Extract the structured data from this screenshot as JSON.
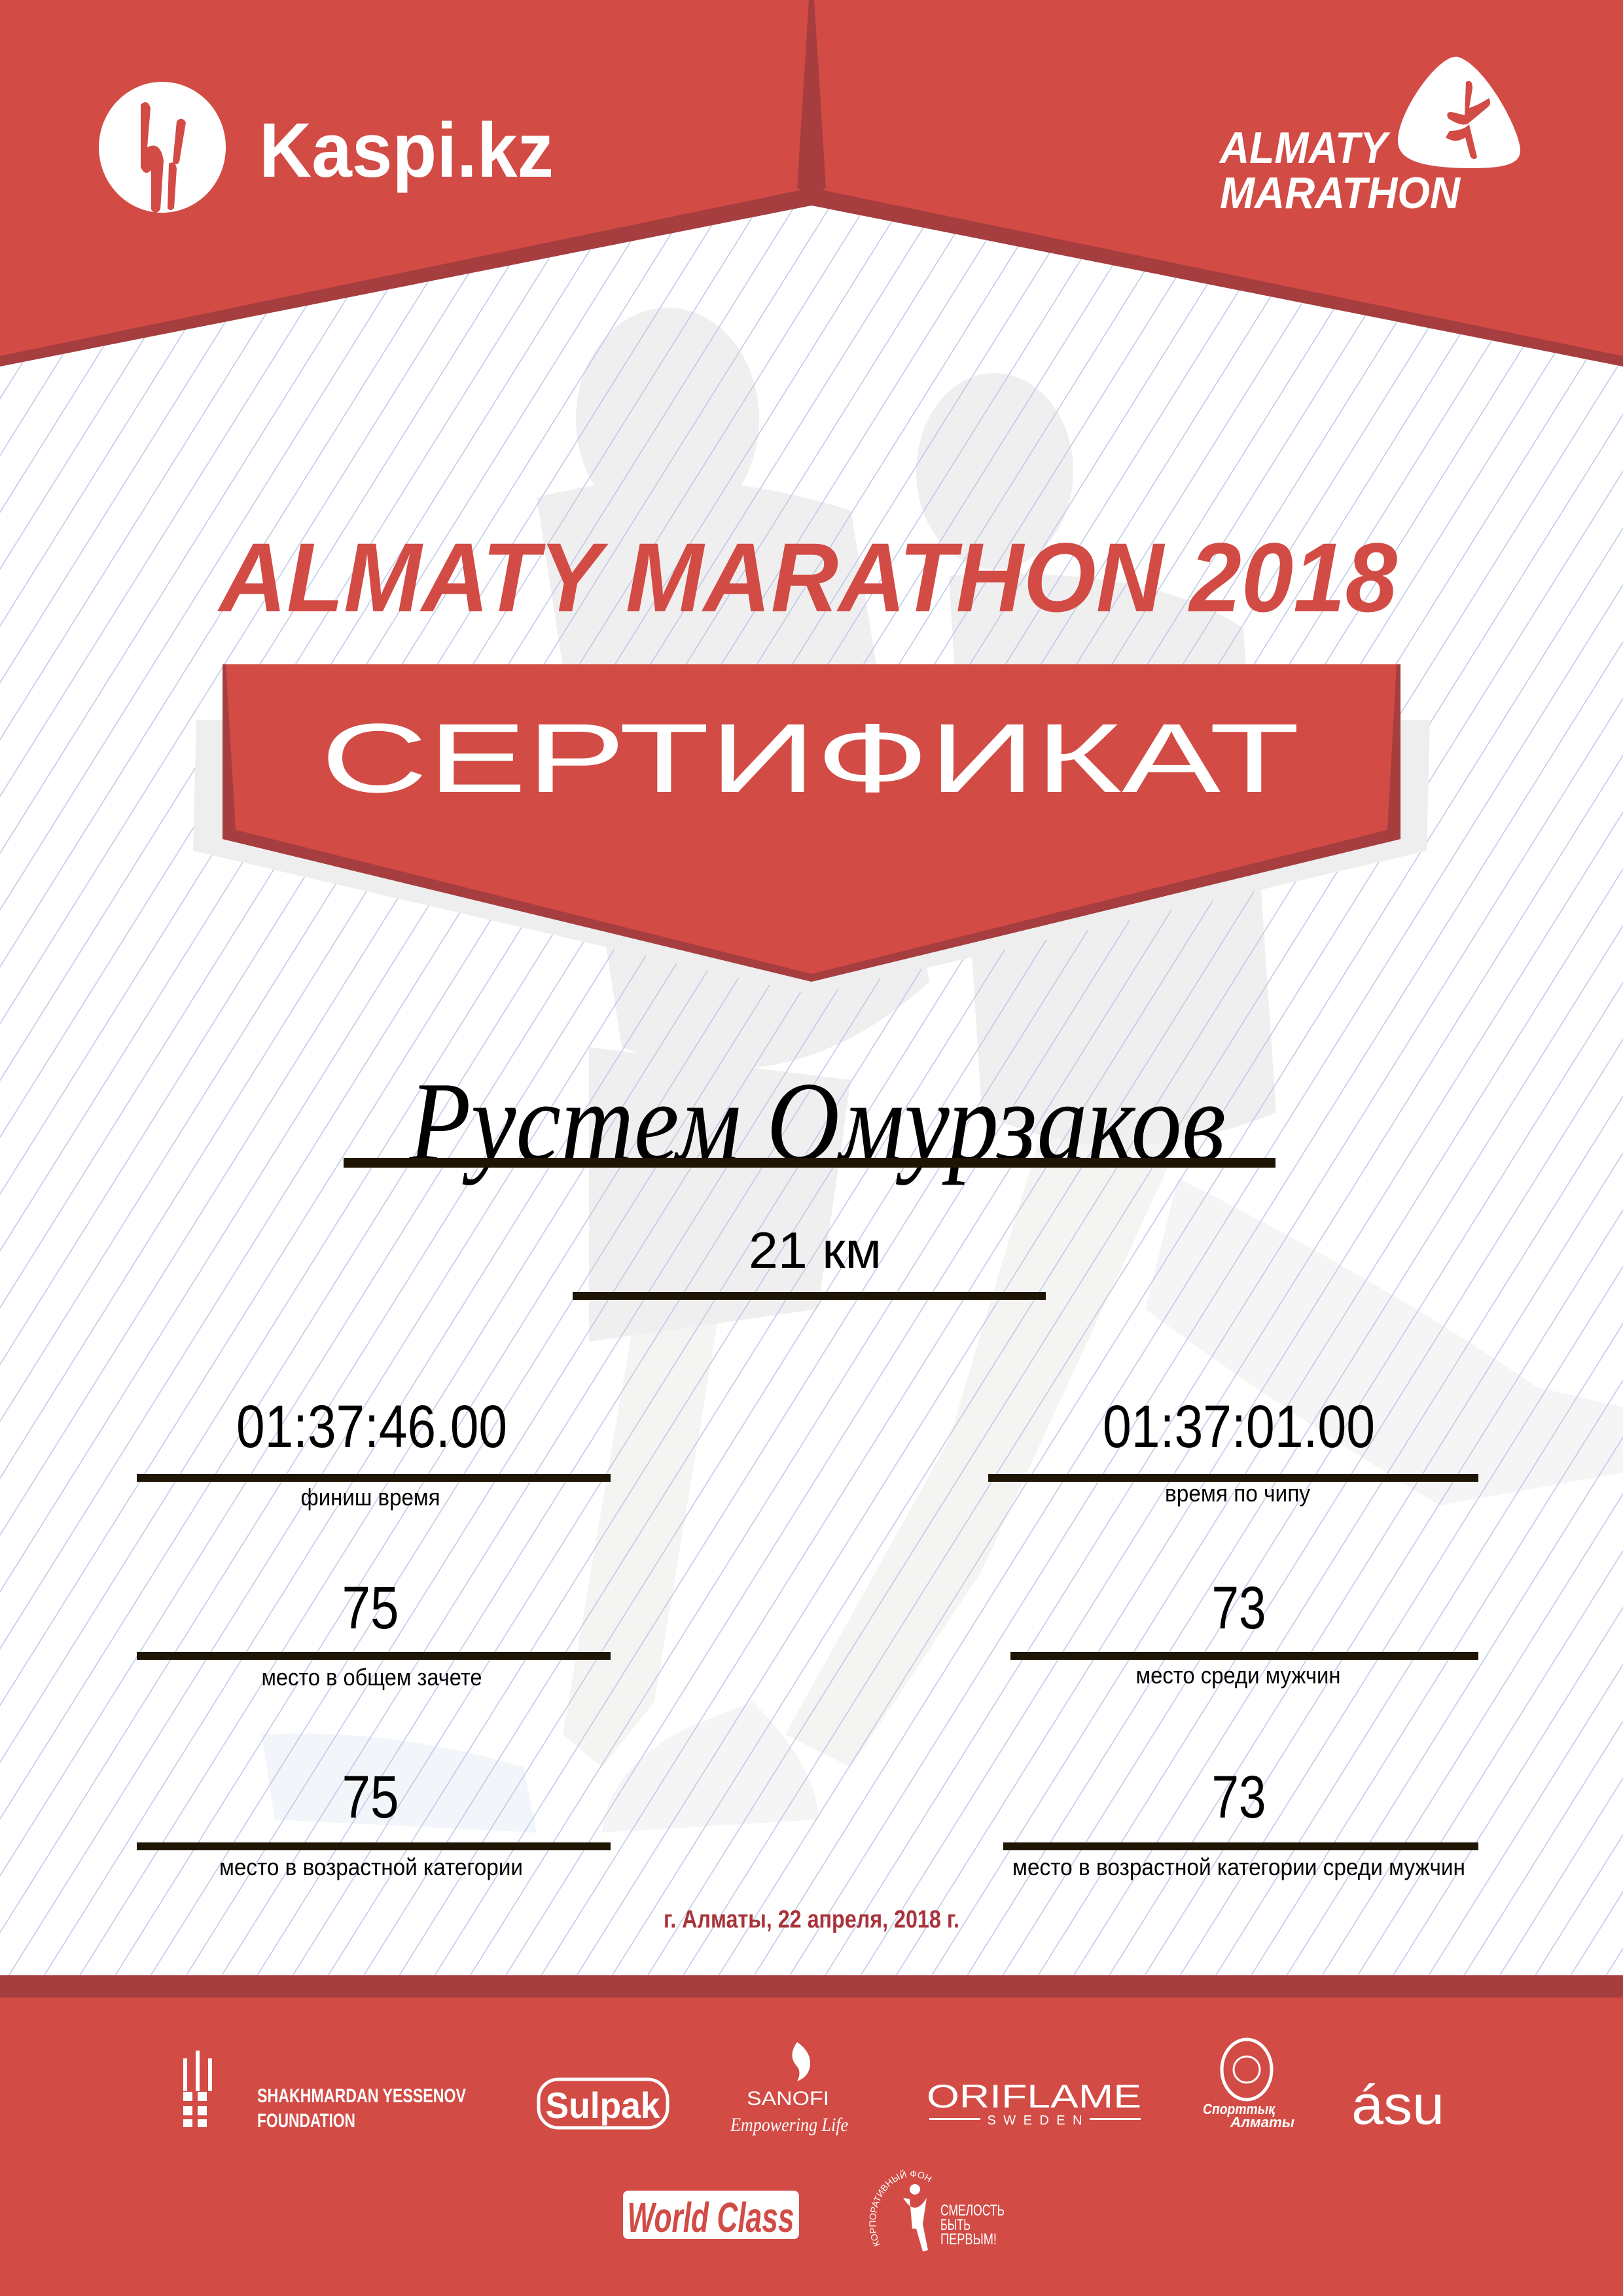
{
  "header": {
    "sponsor_logo": "Kaspi.kz",
    "event_logo_line1": "ALMATY",
    "event_logo_line2": "MARATHON"
  },
  "title": "ALMATY MARATHON 2018",
  "banner": "СЕРТИФИКАТ",
  "participant": {
    "name": "Рустем Омурзаков",
    "distance": "21 км"
  },
  "results": {
    "left": [
      {
        "value": "01:37:46.00",
        "label": "финиш время"
      },
      {
        "value": "75",
        "label": "место в общем зачете"
      },
      {
        "value": "75",
        "label": "место в возрастной категории"
      }
    ],
    "right": [
      {
        "value": "01:37:01.00",
        "label": "время по чипу"
      },
      {
        "value": "73",
        "label": "место среди мужчин"
      },
      {
        "value": "73",
        "label": "место в возрастной категории среди мужчин"
      }
    ]
  },
  "date": "г. Алматы, 22 апреля, 2018 г.",
  "sponsors": {
    "yessenov_line1": "SHAKHMARDAN YESSENOV",
    "yessenov_line2": "FOUNDATION",
    "sulpak": "Sulpak",
    "sanofi": "SANOFI",
    "sanofi_tagline": "Empowering Life",
    "oriflame": "ORIFLAME",
    "oriflame_sub": "SWEDEN",
    "sport_almaty_line1": "Спорттық",
    "sport_almaty_line2": "Алматы",
    "asu": "ásu",
    "world_class": "World Class",
    "fund_arc": "КОРПОРАТИВНЫЙ ФОНД",
    "fund_line1": "СМЕЛОСТЬ",
    "fund_line2": "БЫТЬ",
    "fund_line3": "ПЕРВЫМ!"
  },
  "colors": {
    "brand_red": "#d24b45",
    "dark_red": "#a63d3f",
    "date_red": "#a8333a",
    "rule": "#1f1505",
    "background_lines": "#bcc8e6"
  }
}
